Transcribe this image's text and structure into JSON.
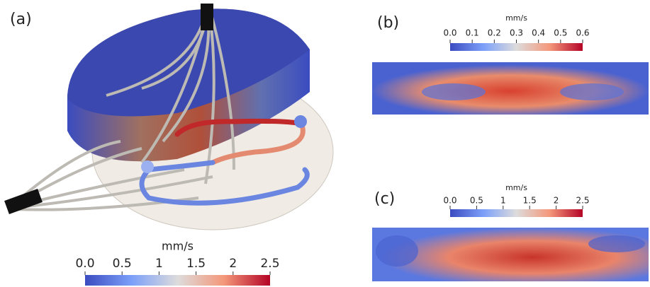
{
  "panels": [
    {
      "label": "(a)",
      "colorbar": {
        "title": "mm/s",
        "range": [
          0,
          2.5
        ],
        "ticks": [
          {
            "value": 0,
            "label": "0.0"
          },
          0.5,
          1,
          1.5,
          2,
          2.5
        ]
      }
    },
    {
      "label": "(b)",
      "colorbar": {
        "title": "mm/s",
        "range": [
          0,
          0.6
        ],
        "ticks": [
          {
            "value": 0,
            "label": "0.0"
          },
          0.1,
          0.2,
          0.3,
          0.4,
          0.5,
          0.6
        ]
      }
    },
    {
      "label": "(c)",
      "colorbar": {
        "title": "mm/s",
        "range": [
          0,
          2.5
        ],
        "ticks": [
          {
            "value": 0,
            "label": "0.0"
          },
          0.5,
          1,
          1.5,
          2,
          2.5
        ]
      }
    }
  ]
}
